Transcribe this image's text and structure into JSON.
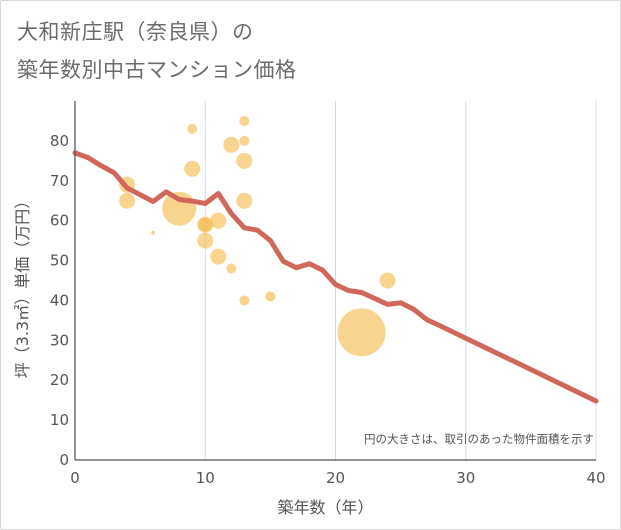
{
  "title_line1": "大和新庄駅（奈良県）の",
  "title_line2": "築年数別中古マンション価格",
  "chart_data": {
    "type": "scatter",
    "xlabel": "築年数（年）",
    "ylabel": "坪（3.3㎡）単価（万円）",
    "xlim": [
      0,
      40
    ],
    "ylim": [
      0,
      90
    ],
    "xticks": [
      0,
      10,
      20,
      30,
      40
    ],
    "yticks": [
      0,
      10,
      20,
      30,
      40,
      50,
      60,
      70,
      80
    ],
    "grid": "vertical",
    "note": "円の大きさは、取引の​あった物件面積を示す",
    "bubble_color": "#f5b94a",
    "line_color": "#d0675a",
    "bubbles": [
      {
        "x": 4,
        "y": 69,
        "s": 8
      },
      {
        "x": 4,
        "y": 65,
        "s": 8
      },
      {
        "x": 6,
        "y": 57,
        "s": 2
      },
      {
        "x": 8,
        "y": 63,
        "s": 17
      },
      {
        "x": 9,
        "y": 83,
        "s": 5
      },
      {
        "x": 9,
        "y": 73,
        "s": 8
      },
      {
        "x": 10,
        "y": 59,
        "s": 8
      },
      {
        "x": 10,
        "y": 59,
        "s": 7
      },
      {
        "x": 10,
        "y": 55,
        "s": 8
      },
      {
        "x": 11,
        "y": 60,
        "s": 8
      },
      {
        "x": 11,
        "y": 51,
        "s": 8
      },
      {
        "x": 12,
        "y": 79,
        "s": 8
      },
      {
        "x": 12,
        "y": 48,
        "s": 5
      },
      {
        "x": 13,
        "y": 85,
        "s": 5
      },
      {
        "x": 13,
        "y": 80,
        "s": 5
      },
      {
        "x": 13,
        "y": 75,
        "s": 8
      },
      {
        "x": 13,
        "y": 65,
        "s": 8
      },
      {
        "x": 13,
        "y": 40,
        "s": 5
      },
      {
        "x": 15,
        "y": 41,
        "s": 5
      },
      {
        "x": 22,
        "y": 32,
        "s": 24
      },
      {
        "x": 24,
        "y": 45,
        "s": 8
      }
    ],
    "trend": [
      {
        "x": 0,
        "y": 77
      },
      {
        "x": 1,
        "y": 75.8
      },
      {
        "x": 2,
        "y": 73.8
      },
      {
        "x": 3,
        "y": 72
      },
      {
        "x": 4,
        "y": 68.2
      },
      {
        "x": 5,
        "y": 66.5
      },
      {
        "x": 6,
        "y": 64.8
      },
      {
        "x": 7,
        "y": 67.2
      },
      {
        "x": 8,
        "y": 65.3
      },
      {
        "x": 9,
        "y": 64.9
      },
      {
        "x": 10,
        "y": 64.3
      },
      {
        "x": 11,
        "y": 66.8
      },
      {
        "x": 12,
        "y": 61.8
      },
      {
        "x": 13,
        "y": 58.2
      },
      {
        "x": 14,
        "y": 57.6
      },
      {
        "x": 15,
        "y": 55
      },
      {
        "x": 16,
        "y": 49.8
      },
      {
        "x": 17,
        "y": 48.2
      },
      {
        "x": 18,
        "y": 49.2
      },
      {
        "x": 19,
        "y": 47.6
      },
      {
        "x": 20,
        "y": 44
      },
      {
        "x": 21,
        "y": 42.5
      },
      {
        "x": 22,
        "y": 42
      },
      {
        "x": 23,
        "y": 40.5
      },
      {
        "x": 24,
        "y": 39
      },
      {
        "x": 25,
        "y": 39.4
      },
      {
        "x": 26,
        "y": 37.8
      },
      {
        "x": 27,
        "y": 35.2
      },
      {
        "x": 28,
        "y": 33.7
      },
      {
        "x": 30,
        "y": 30.5
      },
      {
        "x": 35,
        "y": 22.7
      },
      {
        "x": 40,
        "y": 14.8
      }
    ]
  }
}
